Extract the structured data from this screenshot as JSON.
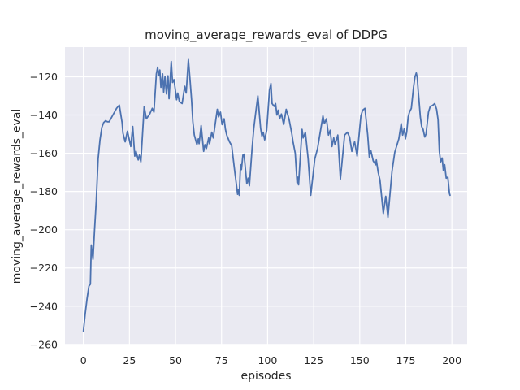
{
  "chart_data": {
    "type": "line",
    "title": "moving_average_rewards_eval of DDPG",
    "xlabel": "episodes",
    "ylabel": "moving_average_rewards_eval",
    "grid": true,
    "legend": "none",
    "xlim": [
      -10,
      208.3
    ],
    "ylim": [
      -260.5,
      -104.5
    ],
    "x_ticks": [
      0,
      25,
      50,
      75,
      100,
      125,
      150,
      175,
      200
    ],
    "x_tick_labels": [
      "0",
      "25",
      "50",
      "75",
      "100",
      "125",
      "150",
      "175",
      "200"
    ],
    "y_ticks": [
      -120,
      -140,
      -160,
      -180,
      -200,
      -220,
      -240,
      -260
    ],
    "y_tick_labels": [
      "−120",
      "−140",
      "−160",
      "−180",
      "−200",
      "−220",
      "−240",
      "−260"
    ],
    "colors": {
      "figure_background": "#ffffff",
      "axes_background": "#eaeaf2",
      "grid": "#ffffff",
      "text": "#262626",
      "line": "#4c72b0"
    },
    "series": [
      {
        "name": "moving_average_rewards_eval",
        "color": "#4c72b0",
        "points": [
          [
            0,
            -253
          ],
          [
            1,
            -244
          ],
          [
            2,
            -236
          ],
          [
            3,
            -229.5
          ],
          [
            3.8,
            -228.5
          ],
          [
            4.3,
            -208
          ],
          [
            5.2,
            -215.5
          ],
          [
            6,
            -201
          ],
          [
            7,
            -185
          ],
          [
            8,
            -163
          ],
          [
            9,
            -153
          ],
          [
            10,
            -146.5
          ],
          [
            11,
            -144
          ],
          [
            12,
            -143
          ],
          [
            13,
            -143.5
          ],
          [
            14,
            -143.5
          ],
          [
            16,
            -140
          ],
          [
            18,
            -136.5
          ],
          [
            19.5,
            -134.8
          ],
          [
            21,
            -144
          ],
          [
            21.5,
            -149.5
          ],
          [
            22.7,
            -154
          ],
          [
            23.9,
            -148.5
          ],
          [
            25.7,
            -156.5
          ],
          [
            26.8,
            -146
          ],
          [
            27.9,
            -161.5
          ],
          [
            28.6,
            -159
          ],
          [
            29.8,
            -163.5
          ],
          [
            30.4,
            -161
          ],
          [
            31.2,
            -164.5
          ],
          [
            33,
            -135.5
          ],
          [
            34.2,
            -142
          ],
          [
            36,
            -139.5
          ],
          [
            37.4,
            -136.5
          ],
          [
            38.3,
            -138.5
          ],
          [
            39.6,
            -118.5
          ],
          [
            40.3,
            -115
          ],
          [
            40.8,
            -119.5
          ],
          [
            41.5,
            -116.5
          ],
          [
            42.1,
            -125.5
          ],
          [
            43,
            -118.5
          ],
          [
            43.6,
            -128
          ],
          [
            44.3,
            -120
          ],
          [
            45.1,
            -129
          ],
          [
            45.9,
            -119.5
          ],
          [
            46.5,
            -131.5
          ],
          [
            47.7,
            -112
          ],
          [
            48.4,
            -123
          ],
          [
            49.2,
            -121.5
          ],
          [
            50.6,
            -132
          ],
          [
            51.2,
            -128.5
          ],
          [
            52.1,
            -133
          ],
          [
            53.6,
            -134
          ],
          [
            55,
            -125
          ],
          [
            55.8,
            -128.5
          ],
          [
            57,
            -111
          ],
          [
            58,
            -123
          ],
          [
            58.7,
            -132
          ],
          [
            59.4,
            -143.5
          ],
          [
            60.2,
            -150.5
          ],
          [
            61.6,
            -155.5
          ],
          [
            62.4,
            -152.5
          ],
          [
            62.8,
            -155
          ],
          [
            63.9,
            -145.5
          ],
          [
            65.3,
            -159
          ],
          [
            66,
            -155.5
          ],
          [
            66.8,
            -157.5
          ],
          [
            68,
            -152
          ],
          [
            68.5,
            -155
          ],
          [
            69.7,
            -149
          ],
          [
            70.5,
            -152
          ],
          [
            72.7,
            -137
          ],
          [
            73.4,
            -141
          ],
          [
            74.4,
            -138.5
          ],
          [
            75.3,
            -145
          ],
          [
            76.4,
            -142
          ],
          [
            77.1,
            -147.5
          ],
          [
            77.8,
            -150.5
          ],
          [
            79.3,
            -154
          ],
          [
            80.5,
            -156
          ],
          [
            82.2,
            -170
          ],
          [
            83,
            -176
          ],
          [
            83.7,
            -181.5
          ],
          [
            84.2,
            -179
          ],
          [
            84.6,
            -182
          ],
          [
            85.3,
            -166
          ],
          [
            85.8,
            -168.5
          ],
          [
            86.6,
            -161
          ],
          [
            87.2,
            -160.5
          ],
          [
            88.7,
            -176
          ],
          [
            89.4,
            -173
          ],
          [
            90.1,
            -177
          ],
          [
            91.5,
            -158
          ],
          [
            92.5,
            -147
          ],
          [
            93.5,
            -139
          ],
          [
            94.7,
            -130
          ],
          [
            96.2,
            -147
          ],
          [
            96.9,
            -151
          ],
          [
            97.6,
            -149
          ],
          [
            98.4,
            -153
          ],
          [
            99.5,
            -148
          ],
          [
            101,
            -127
          ],
          [
            101.8,
            -123.5
          ],
          [
            102.4,
            -134
          ],
          [
            103.5,
            -135.5
          ],
          [
            104.3,
            -134
          ],
          [
            105,
            -140
          ],
          [
            105.7,
            -137.5
          ],
          [
            106.5,
            -142
          ],
          [
            107.5,
            -139.5
          ],
          [
            108.7,
            -145
          ],
          [
            110.1,
            -137
          ],
          [
            111.6,
            -142
          ],
          [
            113.1,
            -149.5
          ],
          [
            113.8,
            -154
          ],
          [
            115,
            -160
          ],
          [
            116,
            -175.5
          ],
          [
            116.4,
            -172.5
          ],
          [
            116.8,
            -176.5
          ],
          [
            118.7,
            -147.5
          ],
          [
            119.3,
            -152
          ],
          [
            120.5,
            -149
          ],
          [
            122,
            -163
          ],
          [
            123.4,
            -182
          ],
          [
            125.6,
            -163
          ],
          [
            127.1,
            -157.5
          ],
          [
            130,
            -140.5
          ],
          [
            130.8,
            -144.5
          ],
          [
            131.9,
            -142
          ],
          [
            133,
            -150.5
          ],
          [
            134,
            -148
          ],
          [
            134.9,
            -156.5
          ],
          [
            135.9,
            -152
          ],
          [
            136.6,
            -155.5
          ],
          [
            138.1,
            -150.5
          ],
          [
            139.5,
            -173.5
          ],
          [
            141.8,
            -150.5
          ],
          [
            143.3,
            -149
          ],
          [
            144.5,
            -151.5
          ],
          [
            145.7,
            -159
          ],
          [
            147.2,
            -154
          ],
          [
            148.6,
            -161.5
          ],
          [
            150.6,
            -140.5
          ],
          [
            151.6,
            -137.5
          ],
          [
            152.8,
            -136.5
          ],
          [
            154.3,
            -150.5
          ],
          [
            155.2,
            -162
          ],
          [
            156,
            -158.5
          ],
          [
            157.3,
            -164
          ],
          [
            158.7,
            -166
          ],
          [
            159,
            -163.5
          ],
          [
            160,
            -170
          ],
          [
            161,
            -174
          ],
          [
            162.8,
            -191.5
          ],
          [
            164.1,
            -182.5
          ],
          [
            165.3,
            -193.5
          ],
          [
            167.5,
            -169.5
          ],
          [
            169,
            -159.5
          ],
          [
            171.2,
            -152.5
          ],
          [
            172.5,
            -144.5
          ],
          [
            173.3,
            -150.5
          ],
          [
            174.2,
            -147
          ],
          [
            174.8,
            -152.5
          ],
          [
            175.5,
            -149
          ],
          [
            176.3,
            -141
          ],
          [
            177,
            -138.5
          ],
          [
            178,
            -136.5
          ],
          [
            179.2,
            -125.5
          ],
          [
            180,
            -120
          ],
          [
            180.7,
            -118
          ],
          [
            181.2,
            -120.5
          ],
          [
            181.7,
            -127
          ],
          [
            182.1,
            -131.5
          ],
          [
            182.9,
            -141
          ],
          [
            183.6,
            -146
          ],
          [
            184.4,
            -147.5
          ],
          [
            185.3,
            -151.5
          ],
          [
            186,
            -150
          ],
          [
            187.3,
            -138.5
          ],
          [
            188.3,
            -135.5
          ],
          [
            189.5,
            -135
          ],
          [
            190.7,
            -134
          ],
          [
            191.7,
            -137
          ],
          [
            192.5,
            -142.5
          ],
          [
            193.2,
            -159
          ],
          [
            193.9,
            -164.5
          ],
          [
            194.7,
            -162.5
          ],
          [
            195.4,
            -169
          ],
          [
            196.1,
            -166
          ],
          [
            196.9,
            -173
          ],
          [
            197.8,
            -172.5
          ],
          [
            198.7,
            -181
          ],
          [
            199,
            -182
          ]
        ]
      }
    ]
  }
}
